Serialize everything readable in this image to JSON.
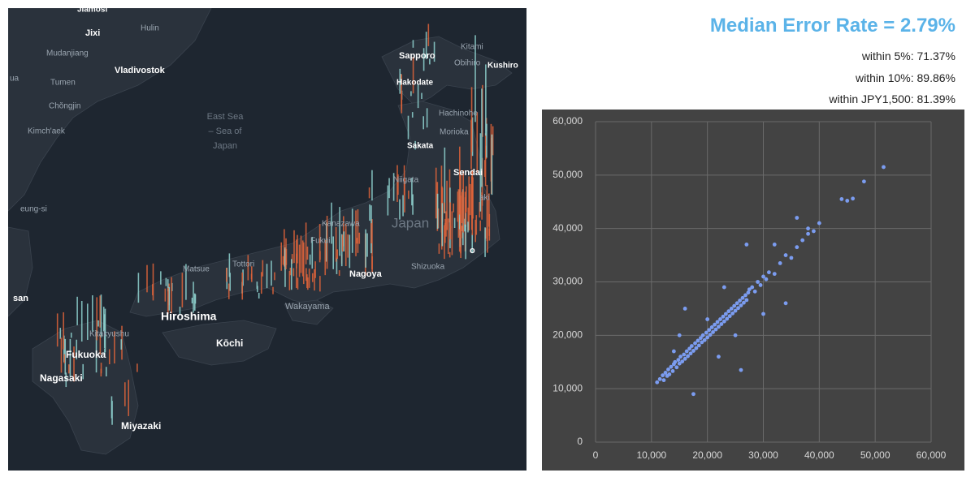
{
  "map": {
    "labels": [
      "Jiamosi",
      "Jixi",
      "Hulin",
      "Mudanjiang",
      "Vladivostok",
      "Tumen",
      "Chŏngjin",
      "Kimch'aek",
      "East Sea",
      "– Sea of",
      "Japan",
      "eung-si",
      "san",
      "ua",
      "Sapporo",
      "Kitami",
      "Obihiro",
      "Kushiro",
      "Hakodate",
      "Hachinohe",
      "Morioka",
      "Sakata",
      "Sendai",
      "Niigata",
      "aki",
      "Kanazawa",
      "Japan",
      "Fukui",
      "o",
      "Shizuoka",
      "Nagoya",
      "Matsue",
      "Tottori",
      "Hiroshima",
      "Wakayama",
      "Kitakyushu",
      "Fukuoka",
      "Kōchi",
      "Nagasaki",
      "Miyazaki"
    ]
  },
  "stats": {
    "headline": "Median Error Rate = 2.79%",
    "lines": [
      "within 5%: 71.37%",
      "within 10%: 89.86%",
      "within JPY1,500: 81.39%"
    ]
  },
  "chart_data": {
    "type": "scatter",
    "color": "#7b9cf0",
    "grid": true,
    "xlim": [
      0,
      60000
    ],
    "ylim": [
      0,
      60000
    ],
    "xticks": [
      0,
      {
        "value": 10000,
        "label": "10,000"
      },
      {
        "value": 20000,
        "label": "20,000"
      },
      {
        "value": 30000,
        "label": "30,000"
      },
      {
        "value": 40000,
        "label": "40,000"
      },
      {
        "value": 50000,
        "label": "50,000"
      },
      {
        "value": 60000,
        "label": "60,000"
      }
    ],
    "yticks": [
      0,
      {
        "value": 10000,
        "label": "10,000"
      },
      {
        "value": 20000,
        "label": "20,000"
      },
      {
        "value": 30000,
        "label": "30,000"
      },
      {
        "value": 40000,
        "label": "40,000"
      },
      {
        "value": 50000,
        "label": "50,000"
      },
      {
        "value": 60000,
        "label": "60,000"
      }
    ],
    "x": [
      11000,
      11500,
      12000,
      12200,
      12500,
      12800,
      13000,
      13200,
      13500,
      13800,
      14000,
      14200,
      14500,
      14800,
      15000,
      15200,
      15500,
      15800,
      16000,
      16300,
      16500,
      16800,
      17000,
      17200,
      17500,
      17800,
      18000,
      18300,
      18500,
      18800,
      19000,
      19200,
      19500,
      19800,
      20000,
      20300,
      20500,
      20800,
      21000,
      21300,
      21500,
      21800,
      22000,
      22300,
      22500,
      22800,
      23000,
      23300,
      23500,
      23800,
      24000,
      24300,
      24500,
      24800,
      25000,
      25300,
      25500,
      25800,
      26000,
      26300,
      26500,
      26800,
      27000,
      27300,
      27500,
      28000,
      28500,
      29000,
      29500,
      30000,
      30500,
      31000,
      32000,
      33000,
      34000,
      35000,
      36000,
      37000,
      38000,
      39000,
      40000,
      44000,
      45000,
      46000,
      48000,
      51500,
      17500,
      26000,
      22000,
      14000,
      16000,
      23000,
      20000,
      27000,
      25000,
      32000,
      34000,
      30000,
      38000,
      36000,
      15000
    ],
    "y": [
      11200,
      11800,
      12500,
      11600,
      13000,
      12400,
      13600,
      12700,
      14100,
      13300,
      14600,
      15000,
      14000,
      15400,
      14700,
      16000,
      15100,
      16400,
      15600,
      17000,
      16100,
      17500,
      16600,
      18000,
      17100,
      18500,
      17600,
      19000,
      18100,
      19500,
      18700,
      20000,
      19100,
      20500,
      19600,
      21000,
      20100,
      21500,
      20600,
      22000,
      21100,
      22500,
      21600,
      23000,
      22100,
      23500,
      22600,
      24000,
      23100,
      24500,
      23600,
      25000,
      24100,
      25500,
      24600,
      26000,
      25100,
      26500,
      25600,
      27000,
      26100,
      27500,
      26600,
      28000,
      28600,
      29000,
      28200,
      30000,
      29400,
      31000,
      30500,
      31800,
      31500,
      33500,
      35000,
      34500,
      36500,
      37800,
      39000,
      39500,
      41000,
      45500,
      45200,
      45600,
      48800,
      51500,
      9000,
      13500,
      16000,
      17000,
      25000,
      29000,
      23000,
      37000,
      20000,
      37000,
      26000,
      24000,
      40000,
      42000,
      20000
    ]
  }
}
